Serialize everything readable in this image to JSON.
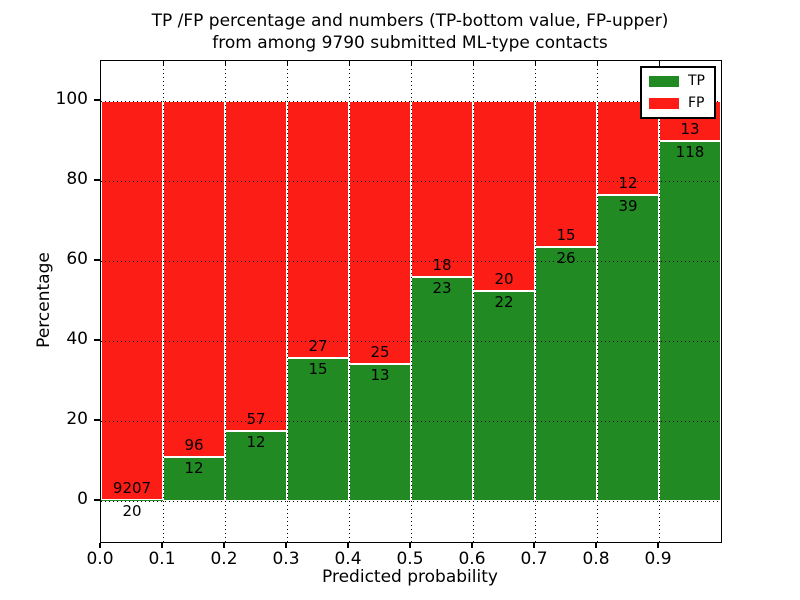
{
  "figure": {
    "title_line1": "TP /FP percentage and numbers (TP-bottom value, FP-upper)",
    "title_line2": "from among 9790 submitted ML-type contacts",
    "xlabel": "Predicted probability",
    "ylabel": "Percentage"
  },
  "legend": {
    "position": "upper right",
    "items": [
      {
        "label": "TP",
        "color": "#228a22"
      },
      {
        "label": "FP",
        "color": "#fd1d17"
      }
    ]
  },
  "chart_data": {
    "type": "bar",
    "stacked": true,
    "normalized_to_percent": 100,
    "title": "TP /FP percentage and numbers (TP-bottom value, FP-upper)\nfrom among 9790 submitted ML-type contacts",
    "xlabel": "Predicted probability",
    "ylabel": "Percentage",
    "total_contacts": 9790,
    "bin_width": 0.1,
    "bin_starts": [
      0.0,
      0.1,
      0.2,
      0.3,
      0.4,
      0.5,
      0.6,
      0.7,
      0.8,
      0.9
    ],
    "xtick_labels": [
      "0.0",
      "0.1",
      "0.2",
      "0.3",
      "0.4",
      "0.5",
      "0.6",
      "0.7",
      "0.8",
      "0.9"
    ],
    "xtick_values": [
      0.0,
      0.1,
      0.2,
      0.3,
      0.4,
      0.5,
      0.6,
      0.7,
      0.8,
      0.9
    ],
    "ytick_values": [
      0,
      20,
      40,
      60,
      80,
      100
    ],
    "xlim": [
      0.0,
      1.0
    ],
    "ylim": [
      -10.25,
      110
    ],
    "grid": "dotted, both axes, drawn above bars",
    "legend_position": "upper right",
    "series": [
      {
        "name": "TP",
        "color": "#228a22",
        "counts": [
          20,
          12,
          12,
          15,
          13,
          23,
          22,
          26,
          39,
          118
        ]
      },
      {
        "name": "FP",
        "color": "#fd1d17",
        "counts": [
          9207,
          96,
          57,
          27,
          25,
          18,
          20,
          15,
          12,
          13
        ]
      }
    ],
    "tp_percent_of_bin": [
      0.22,
      11.11,
      17.39,
      35.71,
      34.21,
      56.1,
      52.38,
      63.41,
      76.47,
      90.08
    ]
  }
}
